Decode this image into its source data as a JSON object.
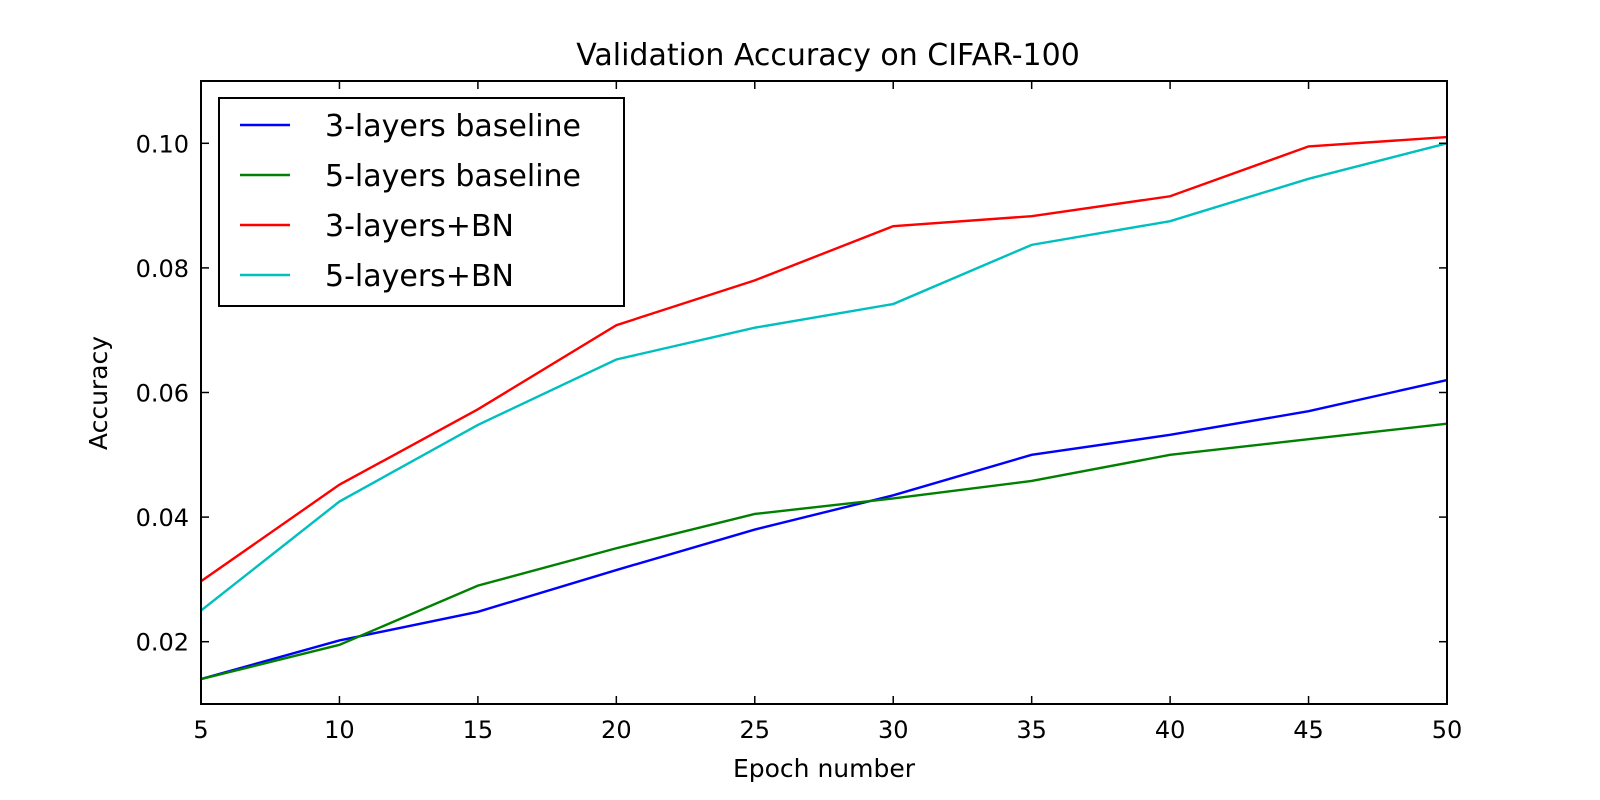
{
  "chart_data": {
    "type": "line",
    "title": "Validation Accuracy on CIFAR-100",
    "xlabel": "Epoch number",
    "ylabel": "Accuracy",
    "xlim": [
      5,
      50
    ],
    "ylim": [
      0.01,
      0.11
    ],
    "x_ticks": [
      "5",
      "10",
      "15",
      "20",
      "25",
      "30",
      "35",
      "40",
      "45",
      "50"
    ],
    "y_ticks": [
      "0.02",
      "0.04",
      "0.06",
      "0.08",
      "0.10"
    ],
    "grid": false,
    "legend_position": "top-left",
    "x": [
      5,
      10,
      15,
      20,
      25,
      30,
      35,
      40,
      45,
      50
    ],
    "series": [
      {
        "name": "3-layers baseline",
        "color": "#0000ff",
        "values": [
          0.014,
          0.0202,
          0.0248,
          0.0315,
          0.038,
          0.0435,
          0.05,
          0.0532,
          0.057,
          0.062
        ]
      },
      {
        "name": "5-layers baseline",
        "color": "#008000",
        "values": [
          0.014,
          0.0195,
          0.029,
          0.035,
          0.0405,
          0.043,
          0.0458,
          0.05,
          0.0525,
          0.055
        ]
      },
      {
        "name": "3-layers+BN",
        "color": "#ff0000",
        "values": [
          0.0297,
          0.0452,
          0.0573,
          0.0708,
          0.078,
          0.0867,
          0.0883,
          0.0915,
          0.0995,
          0.101
        ]
      },
      {
        "name": "5-layers+BN",
        "color": "#00bfbf",
        "values": [
          0.025,
          0.0425,
          0.0548,
          0.0653,
          0.0704,
          0.0742,
          0.0837,
          0.0875,
          0.0943,
          0.1
        ]
      }
    ]
  }
}
